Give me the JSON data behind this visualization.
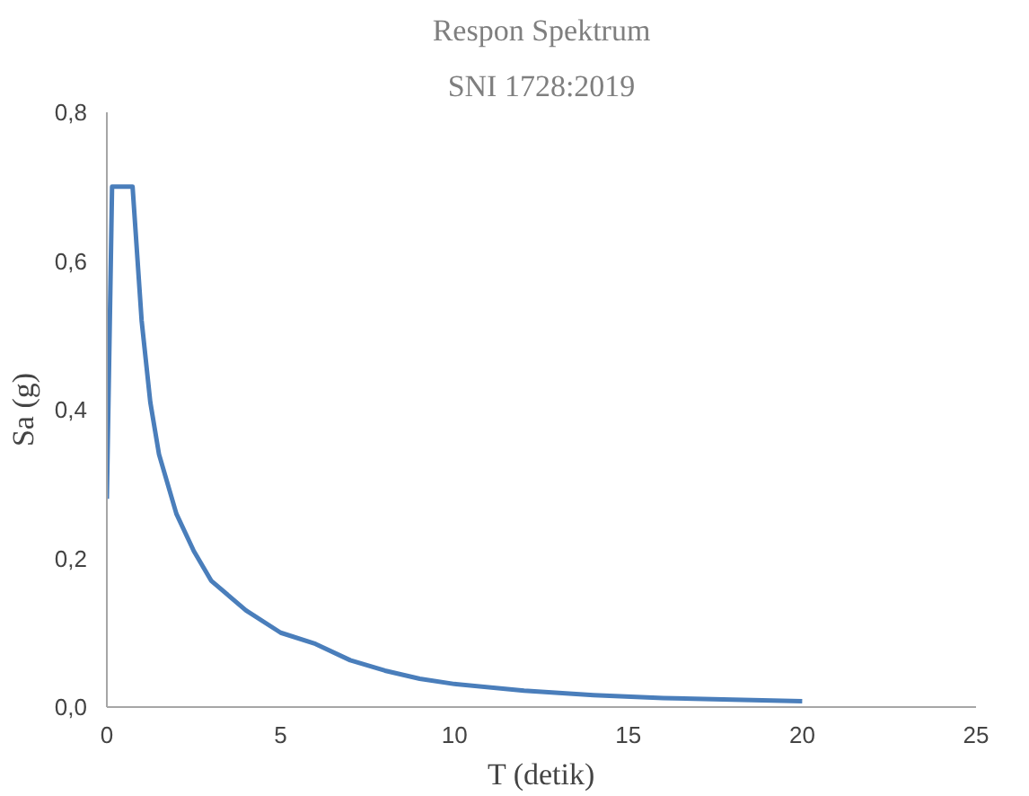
{
  "chart_data": {
    "type": "line",
    "title": "Respon Spektrum",
    "subtitle": "SNI 1728:2019",
    "xlabel": "T (detik)",
    "ylabel": "Sa (g)",
    "x": [
      0,
      0.15,
      0.74,
      1,
      1.25,
      1.5,
      2,
      2.5,
      3,
      3.5,
      4,
      5,
      6,
      7,
      8,
      9,
      10,
      12,
      14,
      16,
      18,
      20
    ],
    "series": [
      {
        "color": "#4a7ebb",
        "values": [
          0.28,
          0.7,
          0.7,
          0.52,
          0.41,
          0.34,
          0.26,
          0.21,
          0.17,
          0.15,
          0.13,
          0.1,
          0.085,
          0.063,
          0.049,
          0.038,
          0.031,
          0.022,
          0.016,
          0.012,
          0.01,
          0.008
        ]
      }
    ],
    "xlim": [
      0,
      25
    ],
    "xticks": [
      0,
      5,
      10,
      15,
      20,
      25
    ],
    "ylim": [
      0,
      0.8
    ],
    "yticks": [
      {
        "value": 0,
        "label": "0,0"
      },
      {
        "value": 0.2,
        "label": "0,2"
      },
      {
        "value": 0.4,
        "label": "0,4"
      },
      {
        "value": 0.6,
        "label": "0,6"
      },
      {
        "value": 0.8,
        "label": "0,8"
      }
    ],
    "grid": false
  }
}
